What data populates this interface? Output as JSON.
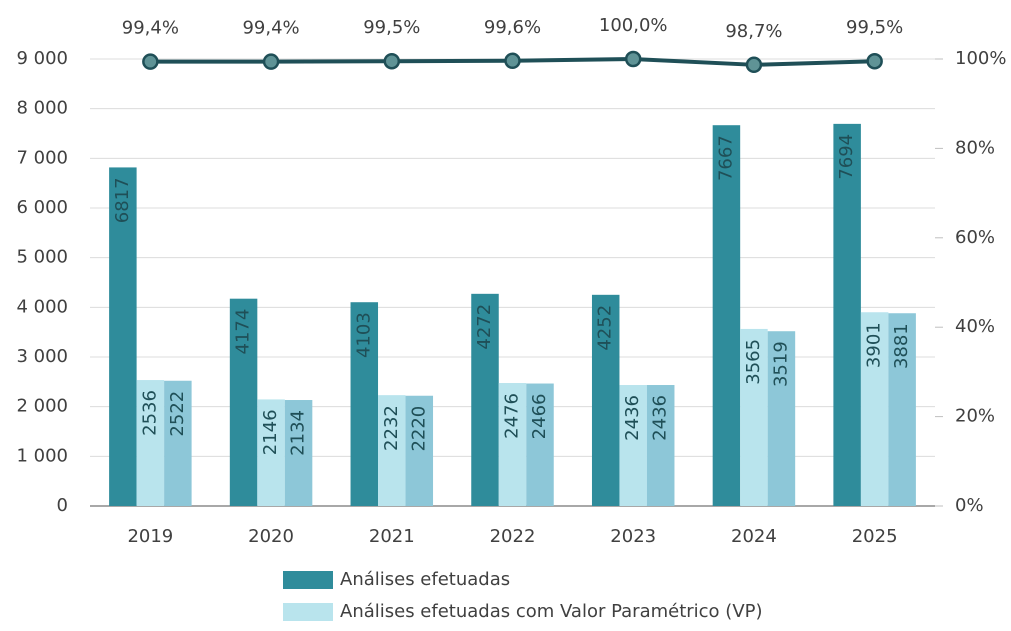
{
  "chart_data": {
    "type": "bar",
    "categories": [
      "2019",
      "2020",
      "2021",
      "2022",
      "2023",
      "2024",
      "2025"
    ],
    "series": [
      {
        "name": "Análises efetuadas",
        "color": "#2f8c9b",
        "values": [
          6817,
          4174,
          4103,
          4272,
          4252,
          7667,
          7694
        ]
      },
      {
        "name": "Análises efetuadas com Valor Paramétrico (VP)",
        "color": "#b9e4ed",
        "values": [
          2536,
          2146,
          2232,
          2476,
          2436,
          3565,
          3901
        ]
      },
      {
        "color": "#8dc7d8",
        "values": [
          2522,
          2134,
          2220,
          2466,
          2436,
          3519,
          3881
        ]
      },
      {
        "type": "line",
        "axis": "y2",
        "color": "#1f4f57",
        "values": [
          99.4,
          99.4,
          99.5,
          99.6,
          100,
          98.7,
          99.5
        ],
        "value_labels": [
          "99,4%",
          "99,4%",
          "99,5%",
          "99,6%",
          "100,0%",
          "98,7%",
          "99,5%"
        ]
      }
    ],
    "ylim": [
      0,
      9000
    ],
    "yticks": [
      0,
      {
        "value": 1000,
        "label": "1 000"
      },
      {
        "value": 2000,
        "label": "2 000"
      },
      {
        "value": 3000,
        "label": "3 000"
      },
      {
        "value": 4000,
        "label": "4 000"
      },
      {
        "value": 5000,
        "label": "5 000"
      },
      {
        "value": 6000,
        "label": "6 000"
      },
      {
        "value": 7000,
        "label": "7 000"
      },
      {
        "value": 8000,
        "label": "8 000"
      },
      {
        "value": 9000,
        "label": "9 000"
      }
    ],
    "y2lim": [
      0,
      100
    ],
    "y2ticks": [
      {
        "value": 0,
        "label": "0%"
      },
      {
        "value": 20,
        "label": "20%"
      },
      {
        "value": 40,
        "label": "40%"
      },
      {
        "value": 60,
        "label": "60%"
      },
      {
        "value": 80,
        "label": "80%"
      },
      {
        "value": 100,
        "label": "100%"
      }
    ],
    "grid": true
  }
}
